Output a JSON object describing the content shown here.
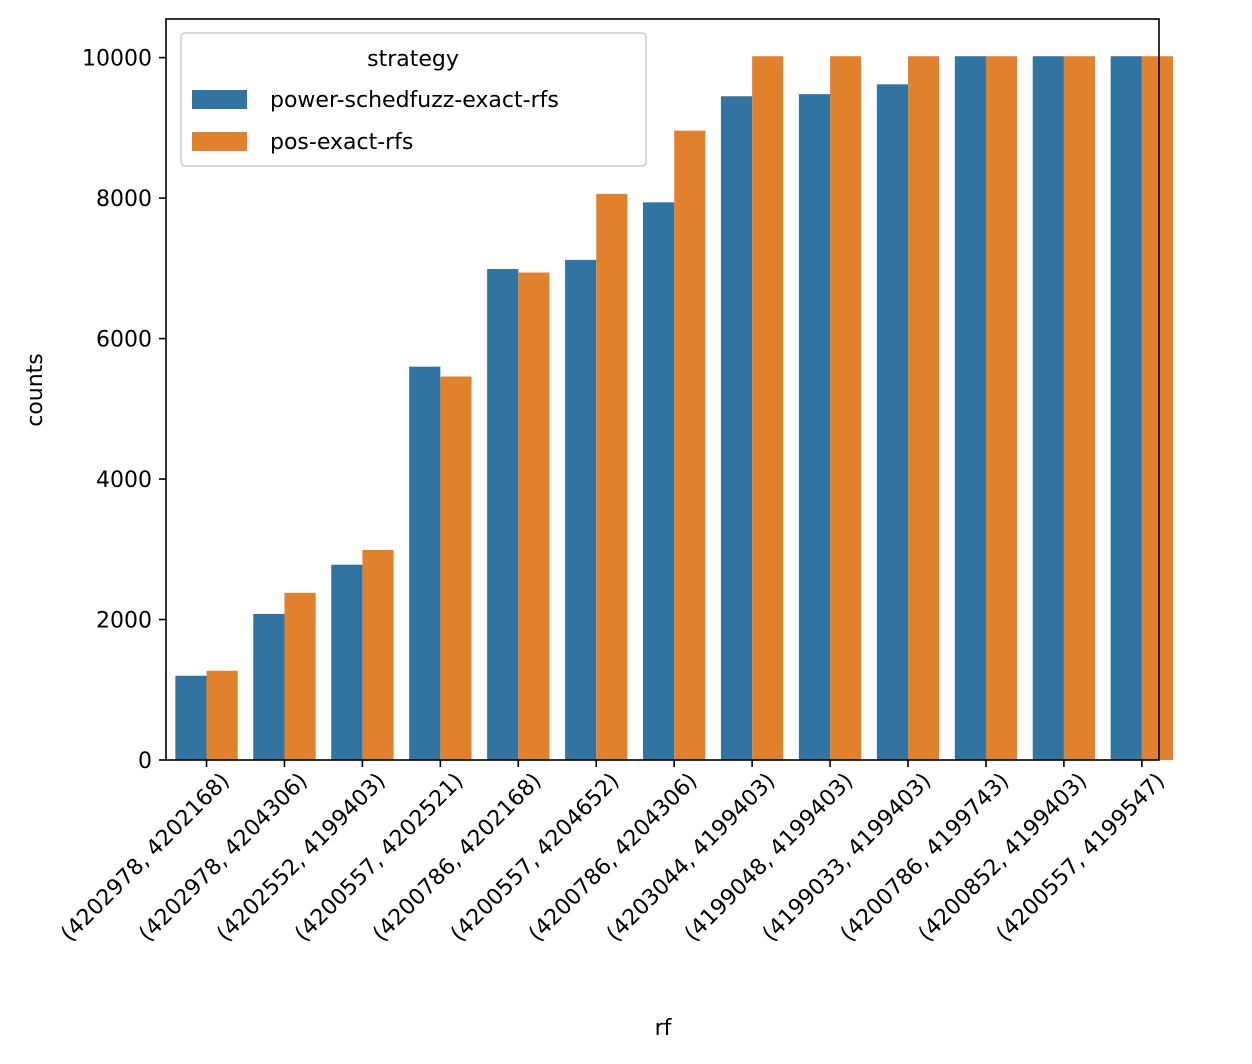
{
  "chart_data": {
    "type": "bar",
    "title": "",
    "xlabel": "rf",
    "ylabel": "counts",
    "ylim": [
      0,
      10550
    ],
    "yticks": [
      0,
      2000,
      4000,
      6000,
      8000,
      10000
    ],
    "grid": false,
    "legend": {
      "title": "strategy",
      "placement": "upper-left"
    },
    "categories": [
      "(4202978, 4202168)",
      "(4202978, 4204306)",
      "(4202552, 4199403)",
      "(4200557, 4202521)",
      "(4200786, 4202168)",
      "(4200557, 4204652)",
      "(4200786, 4204306)",
      "(4203044, 4199403)",
      "(4199048, 4199403)",
      "(4199033, 4199403)",
      "(4200786, 4199743)",
      "(4200852, 4199403)",
      "(4200557, 4199547)"
    ],
    "series": [
      {
        "name": "power-schedfuzz-exact-rfs",
        "color": "#3274a1",
        "values": [
          1200,
          2080,
          2780,
          5600,
          6990,
          7120,
          7940,
          9450,
          9480,
          9620,
          10020,
          10020,
          10020
        ]
      },
      {
        "name": "pos-exact-rfs",
        "color": "#e1812c",
        "values": [
          1270,
          2380,
          2990,
          5460,
          6940,
          8060,
          8960,
          10020,
          10020,
          10020,
          10020,
          10020,
          10020
        ]
      }
    ]
  }
}
